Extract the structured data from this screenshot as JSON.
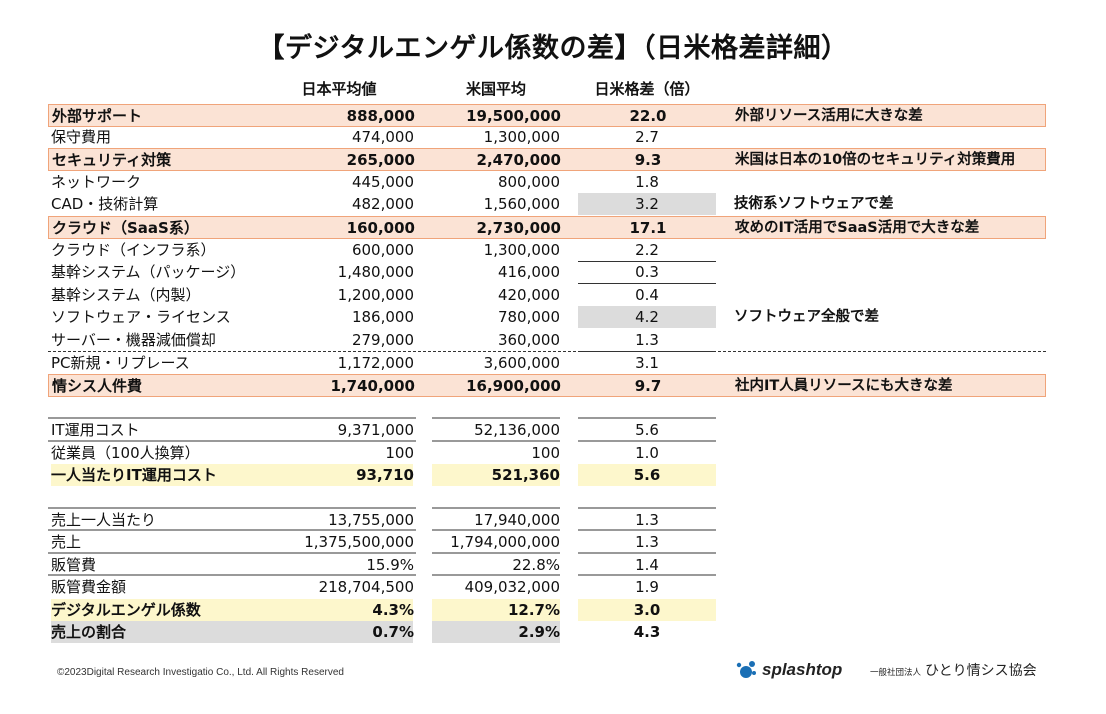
{
  "title": "【デジタルエンゲル係数の差】（日米格差詳細）",
  "headers": {
    "japan": "日本平均値",
    "us": "米国平均",
    "ratio": "日米格差（倍）"
  },
  "rows": [
    {
      "label": "外部サポート",
      "jp": "888,000",
      "us": "19,500,000",
      "ratio": "22.0",
      "note": "外部リソース活用に大きな差"
    },
    {
      "label": "保守費用",
      "jp": "474,000",
      "us": "1,300,000",
      "ratio": "2.7",
      "note": ""
    },
    {
      "label": "セキュリティ対策",
      "jp": "265,000",
      "us": "2,470,000",
      "ratio": "9.3",
      "note": "米国は日本の10倍のセキュリティ対策費用"
    },
    {
      "label": "ネットワーク",
      "jp": "445,000",
      "us": "800,000",
      "ratio": "1.8",
      "note": ""
    },
    {
      "label": "CAD・技術計算",
      "jp": "482,000",
      "us": "1,560,000",
      "ratio": "3.2",
      "note": "技術系ソフトウェアで差"
    },
    {
      "label": "クラウド（SaaS系）",
      "jp": "160,000",
      "us": "2,730,000",
      "ratio": "17.1",
      "note": "攻めのIT活用でSaaS活用で大きな差"
    },
    {
      "label": "クラウド（インフラ系）",
      "jp": "600,000",
      "us": "1,300,000",
      "ratio": "2.2",
      "note": ""
    },
    {
      "label": "基幹システム（パッケージ）",
      "jp": "1,480,000",
      "us": "416,000",
      "ratio": "0.3",
      "note": ""
    },
    {
      "label": "基幹システム（内製）",
      "jp": "1,200,000",
      "us": "420,000",
      "ratio": "0.4",
      "note": ""
    },
    {
      "label": "ソフトウェア・ライセンス",
      "jp": "186,000",
      "us": "780,000",
      "ratio": "4.2",
      "note": "ソフトウェア全般で差"
    },
    {
      "label": "サーバー・機器減価償却",
      "jp": "279,000",
      "us": "360,000",
      "ratio": "1.3",
      "note": ""
    },
    {
      "label": "PC新規・リプレース",
      "jp": "1,172,000",
      "us": "3,600,000",
      "ratio": "3.1",
      "note": ""
    },
    {
      "label": "情シス人件費",
      "jp": "1,740,000",
      "us": "16,900,000",
      "ratio": "9.7",
      "note": "社内IT人員リソースにも大きな差"
    },
    {
      "label": "IT運用コスト",
      "jp": "9,371,000",
      "us": "52,136,000",
      "ratio": "5.6",
      "note": ""
    },
    {
      "label": "従業員（100人換算）",
      "jp": "100",
      "us": "100",
      "ratio": "1.0",
      "note": ""
    },
    {
      "label": "一人当たりIT運用コスト",
      "jp": "93,710",
      "us": "521,360",
      "ratio": "5.6",
      "note": ""
    },
    {
      "label": "売上一人当たり",
      "jp": "13,755,000",
      "us": "17,940,000",
      "ratio": "1.3",
      "note": ""
    },
    {
      "label": "売上",
      "jp": "1,375,500,000",
      "us": "1,794,000,000",
      "ratio": "1.3",
      "note": ""
    },
    {
      "label": "販管費",
      "jp": "15.9%",
      "us": "22.8%",
      "ratio": "1.4",
      "note": ""
    },
    {
      "label": "販管費金額",
      "jp": "218,704,500",
      "us": "409,032,000",
      "ratio": "1.9",
      "note": ""
    },
    {
      "label": "デジタルエンゲル係数",
      "jp": "4.3%",
      "us": "12.7%",
      "ratio": "3.0",
      "note": ""
    },
    {
      "label": "売上の割合",
      "jp": "0.7%",
      "us": "2.9%",
      "ratio": "4.3",
      "note": ""
    }
  ],
  "footer": {
    "copyright": "©2023Digital Research Investigatio Co., Ltd. All Rights Reserved"
  },
  "logos": {
    "splashtop": "splashtop",
    "org_small": "一般社団法人",
    "org_name": "ひとり情シス協会"
  },
  "colors": {
    "highlight": "#fbe3d5",
    "highlight_border": "#f0a47a",
    "yellow": "#fdf7cc",
    "grey": "#dcdcdc",
    "splashtop_blue": "#1a6fb5"
  }
}
